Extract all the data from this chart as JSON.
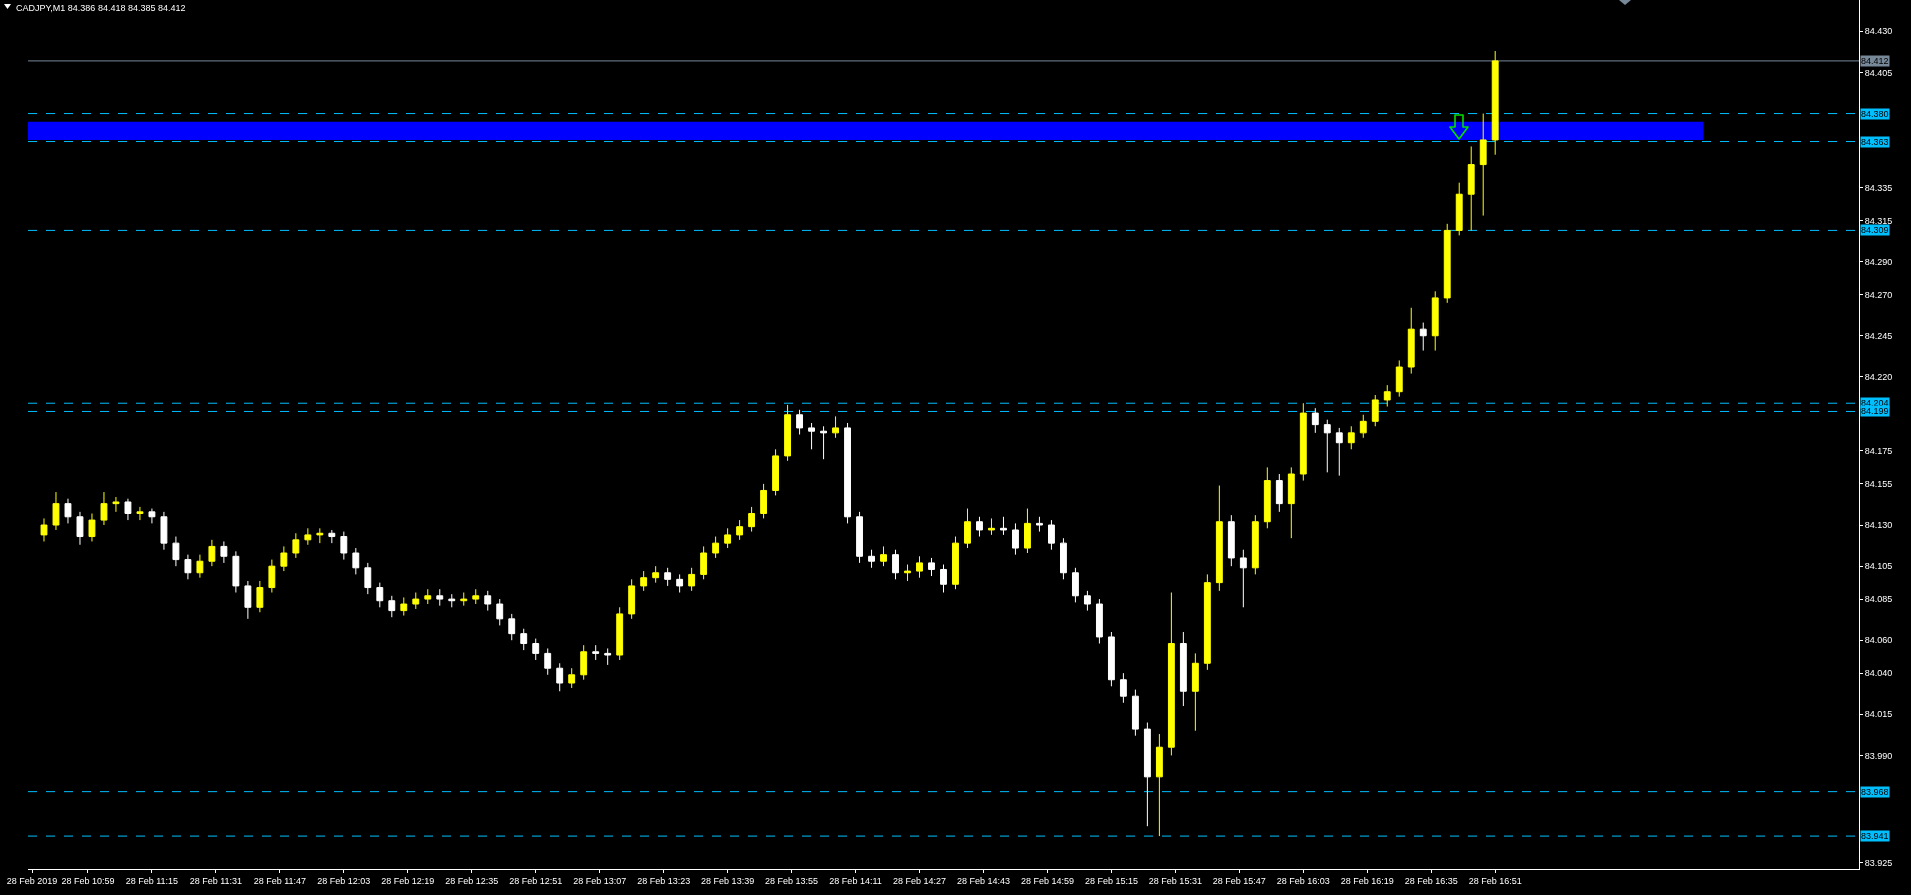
{
  "chart_data": {
    "type": "candlestick",
    "title": "CADJPY,M1 84.386 84.418 84.385 84.412",
    "x": [
      "2019-02-28T10:48",
      "2019-02-28T10:51",
      "2019-02-28T10:54",
      "2019-02-28T10:57",
      "2019-02-28T11:00",
      "2019-02-28T11:03",
      "2019-02-28T11:06",
      "2019-02-28T11:09",
      "2019-02-28T11:12",
      "2019-02-28T11:15",
      "2019-02-28T11:18",
      "2019-02-28T11:21",
      "2019-02-28T11:24",
      "2019-02-28T11:27",
      "2019-02-28T11:30",
      "2019-02-28T11:33",
      "2019-02-28T11:36",
      "2019-02-28T11:39",
      "2019-02-28T11:42",
      "2019-02-28T11:45",
      "2019-02-28T11:48",
      "2019-02-28T11:51",
      "2019-02-28T11:54",
      "2019-02-28T11:57",
      "2019-02-28T12:00",
      "2019-02-28T12:03",
      "2019-02-28T12:06",
      "2019-02-28T12:09",
      "2019-02-28T12:12",
      "2019-02-28T12:15",
      "2019-02-28T12:18",
      "2019-02-28T12:21",
      "2019-02-28T12:24",
      "2019-02-28T12:27",
      "2019-02-28T12:30",
      "2019-02-28T12:33",
      "2019-02-28T12:36",
      "2019-02-28T12:39",
      "2019-02-28T12:42",
      "2019-02-28T12:45",
      "2019-02-28T12:48",
      "2019-02-28T12:51",
      "2019-02-28T12:54",
      "2019-02-28T12:57",
      "2019-02-28T13:00",
      "2019-02-28T13:03",
      "2019-02-28T13:06",
      "2019-02-28T13:09",
      "2019-02-28T13:12",
      "2019-02-28T13:15",
      "2019-02-28T13:18",
      "2019-02-28T13:21",
      "2019-02-28T13:24",
      "2019-02-28T13:27",
      "2019-02-28T13:30",
      "2019-02-28T13:33",
      "2019-02-28T13:36",
      "2019-02-28T13:39",
      "2019-02-28T13:42",
      "2019-02-28T13:45",
      "2019-02-28T13:48",
      "2019-02-28T13:51",
      "2019-02-28T13:54",
      "2019-02-28T13:57",
      "2019-02-28T14:00",
      "2019-02-28T14:03",
      "2019-02-28T14:06",
      "2019-02-28T14:09",
      "2019-02-28T14:12",
      "2019-02-28T14:15",
      "2019-02-28T14:18",
      "2019-02-28T14:21",
      "2019-02-28T14:24",
      "2019-02-28T14:27",
      "2019-02-28T14:30",
      "2019-02-28T14:33",
      "2019-02-28T14:36",
      "2019-02-28T14:39",
      "2019-02-28T14:42",
      "2019-02-28T14:45",
      "2019-02-28T14:48",
      "2019-02-28T14:51",
      "2019-02-28T14:54",
      "2019-02-28T14:57",
      "2019-02-28T15:00",
      "2019-02-28T15:03",
      "2019-02-28T15:06",
      "2019-02-28T15:09",
      "2019-02-28T15:12",
      "2019-02-28T15:15",
      "2019-02-28T15:18",
      "2019-02-28T15:21",
      "2019-02-28T15:24",
      "2019-02-28T15:27",
      "2019-02-28T15:30",
      "2019-02-28T15:33",
      "2019-02-28T15:36",
      "2019-02-28T15:39",
      "2019-02-28T15:42",
      "2019-02-28T15:45",
      "2019-02-28T15:48",
      "2019-02-28T15:51",
      "2019-02-28T15:54",
      "2019-02-28T15:57",
      "2019-02-28T16:00",
      "2019-02-28T16:03",
      "2019-02-28T16:06",
      "2019-02-28T16:09",
      "2019-02-28T16:12",
      "2019-02-28T16:15",
      "2019-02-28T16:18",
      "2019-02-28T16:21",
      "2019-02-28T16:24",
      "2019-02-28T16:27",
      "2019-02-28T16:30",
      "2019-02-28T16:33",
      "2019-02-28T16:36",
      "2019-02-28T16:39",
      "2019-02-28T16:42",
      "2019-02-28T16:45",
      "2019-02-28T16:48",
      "2019-02-28T16:51"
    ],
    "ohlc": [
      [
        84.124,
        84.134,
        84.12,
        84.13
      ],
      [
        84.13,
        84.15,
        84.127,
        84.143
      ],
      [
        84.143,
        84.146,
        84.131,
        84.135
      ],
      [
        84.135,
        84.138,
        84.118,
        84.123
      ],
      [
        84.123,
        84.137,
        84.12,
        84.133
      ],
      [
        84.133,
        84.15,
        84.13,
        84.143
      ],
      [
        84.143,
        84.147,
        84.138,
        84.144
      ],
      [
        84.144,
        84.146,
        84.133,
        84.137
      ],
      [
        84.137,
        84.141,
        84.133,
        84.138
      ],
      [
        84.138,
        84.14,
        84.131,
        84.135
      ],
      [
        84.135,
        84.138,
        84.115,
        84.119
      ],
      [
        84.119,
        84.123,
        84.105,
        84.109
      ],
      [
        84.109,
        84.112,
        84.097,
        84.101
      ],
      [
        84.101,
        84.112,
        84.098,
        84.108
      ],
      [
        84.108,
        84.121,
        84.105,
        84.117
      ],
      [
        84.117,
        84.12,
        84.107,
        84.111
      ],
      [
        84.111,
        84.114,
        84.089,
        84.093
      ],
      [
        84.093,
        84.096,
        84.073,
        84.08
      ],
      [
        84.08,
        84.096,
        84.077,
        84.092
      ],
      [
        84.092,
        84.109,
        84.089,
        84.105
      ],
      [
        84.105,
        84.117,
        84.102,
        84.113
      ],
      [
        84.113,
        84.125,
        84.11,
        84.121
      ],
      [
        84.121,
        84.128,
        84.118,
        84.124
      ],
      [
        84.124,
        84.128,
        84.119,
        84.125
      ],
      [
        84.125,
        84.127,
        84.119,
        84.123
      ],
      [
        84.123,
        84.126,
        84.109,
        84.113
      ],
      [
        84.113,
        84.116,
        84.1,
        84.104
      ],
      [
        84.104,
        84.107,
        84.088,
        84.092
      ],
      [
        84.092,
        84.095,
        84.08,
        84.084
      ],
      [
        84.084,
        84.087,
        84.074,
        84.078
      ],
      [
        84.078,
        84.086,
        84.075,
        84.082
      ],
      [
        84.082,
        84.089,
        84.079,
        84.085
      ],
      [
        84.085,
        84.091,
        84.082,
        84.087
      ],
      [
        84.087,
        84.091,
        84.081,
        84.085
      ],
      [
        84.085,
        84.088,
        84.08,
        84.084
      ],
      [
        84.084,
        84.089,
        84.081,
        84.085
      ],
      [
        84.085,
        84.091,
        84.082,
        84.087
      ],
      [
        84.087,
        84.09,
        84.078,
        84.082
      ],
      [
        84.082,
        84.085,
        84.069,
        84.073
      ],
      [
        84.073,
        84.076,
        84.06,
        84.064
      ],
      [
        84.064,
        84.067,
        84.054,
        84.058
      ],
      [
        84.058,
        84.061,
        84.048,
        84.052
      ],
      [
        84.052,
        84.055,
        84.039,
        84.043
      ],
      [
        84.043,
        84.046,
        84.029,
        84.034
      ],
      [
        84.034,
        84.043,
        84.031,
        84.039
      ],
      [
        84.039,
        84.057,
        84.036,
        84.053
      ],
      [
        84.053,
        84.057,
        84.048,
        84.052
      ],
      [
        84.052,
        84.055,
        84.045,
        84.051
      ],
      [
        84.051,
        84.08,
        84.048,
        84.076
      ],
      [
        84.076,
        84.097,
        84.073,
        84.093
      ],
      [
        84.093,
        84.102,
        84.09,
        84.098
      ],
      [
        84.098,
        84.105,
        84.095,
        84.101
      ],
      [
        84.101,
        84.104,
        84.093,
        84.097
      ],
      [
        84.097,
        84.1,
        84.089,
        84.093
      ],
      [
        84.093,
        84.104,
        84.09,
        84.1
      ],
      [
        84.1,
        84.117,
        84.097,
        84.113
      ],
      [
        84.113,
        84.123,
        84.11,
        84.119
      ],
      [
        84.119,
        84.128,
        84.116,
        84.124
      ],
      [
        84.124,
        84.133,
        84.121,
        84.129
      ],
      [
        84.129,
        84.141,
        84.126,
        84.137
      ],
      [
        84.137,
        84.155,
        84.134,
        84.151
      ],
      [
        84.151,
        84.176,
        84.148,
        84.172
      ],
      [
        84.172,
        84.203,
        84.169,
        84.197
      ],
      [
        84.197,
        84.2,
        84.185,
        84.189
      ],
      [
        84.189,
        84.192,
        84.176,
        84.187
      ],
      [
        84.187,
        84.19,
        84.17,
        84.186
      ],
      [
        84.186,
        84.196,
        84.183,
        84.189
      ],
      [
        84.189,
        84.192,
        84.131,
        84.135
      ],
      [
        84.135,
        84.138,
        84.107,
        84.111
      ],
      [
        84.111,
        84.115,
        84.104,
        84.108
      ],
      [
        84.108,
        84.117,
        84.105,
        84.112
      ],
      [
        84.112,
        84.115,
        84.097,
        84.101
      ],
      [
        84.101,
        84.106,
        84.096,
        84.102
      ],
      [
        84.102,
        84.111,
        84.098,
        84.107
      ],
      [
        84.107,
        84.11,
        84.099,
        84.103
      ],
      [
        84.103,
        84.106,
        84.089,
        84.094
      ],
      [
        84.094,
        84.123,
        84.091,
        84.119
      ],
      [
        84.119,
        84.14,
        84.116,
        84.132
      ],
      [
        84.132,
        84.135,
        84.123,
        84.127
      ],
      [
        84.127,
        84.134,
        84.124,
        84.128
      ],
      [
        84.128,
        84.135,
        84.124,
        84.127
      ],
      [
        84.127,
        84.131,
        84.112,
        84.116
      ],
      [
        84.116,
        84.14,
        84.113,
        84.131
      ],
      [
        84.131,
        84.135,
        84.126,
        84.13
      ],
      [
        84.13,
        84.133,
        84.115,
        84.119
      ],
      [
        84.119,
        84.122,
        84.097,
        84.101
      ],
      [
        84.101,
        84.104,
        84.083,
        84.087
      ],
      [
        84.087,
        84.09,
        84.078,
        84.082
      ],
      [
        84.082,
        84.085,
        84.058,
        84.062
      ],
      [
        84.062,
        84.065,
        84.032,
        84.036
      ],
      [
        84.036,
        84.04,
        84.022,
        84.026
      ],
      [
        84.026,
        84.03,
        84.002,
        84.006
      ],
      [
        84.006,
        84.01,
        83.947,
        83.977
      ],
      [
        83.977,
        84.003,
        83.941,
        83.995
      ],
      [
        83.995,
        84.089,
        83.99,
        84.058
      ],
      [
        84.058,
        84.065,
        84.02,
        84.029
      ],
      [
        84.029,
        84.052,
        84.005,
        84.046
      ],
      [
        84.046,
        84.1,
        84.042,
        84.095
      ],
      [
        84.095,
        84.154,
        84.09,
        84.132
      ],
      [
        84.132,
        84.136,
        84.105,
        84.11
      ],
      [
        84.11,
        84.115,
        84.08,
        84.104
      ],
      [
        84.104,
        84.136,
        84.1,
        84.132
      ],
      [
        84.132,
        84.165,
        84.128,
        84.157
      ],
      [
        84.157,
        84.161,
        84.138,
        84.143
      ],
      [
        84.143,
        84.165,
        84.122,
        84.161
      ],
      [
        84.161,
        84.204,
        84.157,
        84.198
      ],
      [
        84.198,
        84.201,
        84.186,
        84.191
      ],
      [
        84.191,
        84.194,
        84.162,
        84.186
      ],
      [
        84.186,
        84.189,
        84.16,
        84.18
      ],
      [
        84.18,
        84.19,
        84.176,
        84.186
      ],
      [
        84.186,
        84.197,
        84.183,
        84.193
      ],
      [
        84.193,
        84.209,
        84.19,
        84.206
      ],
      [
        84.206,
        84.215,
        84.202,
        84.211
      ],
      [
        84.211,
        84.23,
        84.208,
        84.226
      ],
      [
        84.226,
        84.262,
        84.222,
        84.249
      ],
      [
        84.249,
        84.253,
        84.236,
        84.245
      ],
      [
        84.245,
        84.272,
        84.236,
        84.268
      ],
      [
        84.268,
        84.313,
        84.265,
        84.309
      ],
      [
        84.309,
        84.338,
        84.306,
        84.331
      ],
      [
        84.331,
        84.36,
        84.309,
        84.349
      ],
      [
        84.349,
        84.38,
        84.318,
        84.364
      ],
      [
        84.364,
        84.418,
        84.355,
        84.412
      ]
    ],
    "colors": [
      "#ffff00",
      "#ffff00",
      "#ffffff",
      "#ffffff",
      "#ffff00",
      "#ffff00",
      "#ffff00",
      "#ffffff",
      "#ffff00",
      "#ffffff",
      "#ffffff",
      "#ffffff",
      "#ffffff",
      "#ffff00",
      "#ffff00",
      "#ffffff",
      "#ffffff",
      "#ffffff",
      "#ffff00",
      "#ffff00",
      "#ffff00",
      "#ffff00",
      "#ffff00",
      "#ffff00",
      "#ffffff",
      "#ffffff",
      "#ffffff",
      "#ffffff",
      "#ffffff",
      "#ffffff",
      "#ffff00",
      "#ffff00",
      "#ffff00",
      "#ffffff",
      "#ffffff",
      "#ffff00",
      "#ffff00",
      "#ffffff",
      "#ffffff",
      "#ffffff",
      "#ffffff",
      "#ffffff",
      "#ffffff",
      "#ffffff",
      "#ffff00",
      "#ffff00",
      "#ffffff",
      "#ffffff",
      "#ffff00",
      "#ffff00",
      "#ffff00",
      "#ffff00",
      "#ffffff",
      "#ffffff",
      "#ffff00",
      "#ffff00",
      "#ffff00",
      "#ffff00",
      "#ffff00",
      "#ffff00",
      "#ffff00",
      "#ffff00",
      "#ffff00",
      "#ffffff",
      "#ffffff",
      "#ffffff",
      "#ffff00",
      "#ffffff",
      "#ffffff",
      "#ffffff",
      "#ffff00",
      "#ffffff",
      "#ffff00",
      "#ffff00",
      "#ffffff",
      "#ffffff",
      "#ffff00",
      "#ffff00",
      "#ffffff",
      "#ffff00",
      "#ffffff",
      "#ffffff",
      "#ffff00",
      "#ffffff",
      "#ffffff",
      "#ffffff",
      "#ffffff",
      "#ffffff",
      "#ffffff",
      "#ffffff",
      "#ffffff",
      "#ffffff",
      "#ffffff",
      "#ffff00",
      "#ffff00",
      "#ffffff",
      "#ffff00",
      "#ffff00",
      "#ffff00",
      "#ffffff",
      "#ffffff",
      "#ffff00",
      "#ffff00",
      "#ffffff",
      "#ffff00",
      "#ffff00",
      "#ffffff",
      "#ffffff",
      "#ffffff",
      "#ffff00",
      "#ffff00",
      "#ffff00",
      "#ffff00",
      "#ffff00",
      "#ffff00",
      "#ffffff",
      "#ffff00",
      "#ffff00",
      "#ffff00",
      "#ffff00",
      "#ffff00",
      "#ffff00"
    ],
    "xlim": [
      "2019-02-28T10:44",
      "2019-02-28T18:22"
    ],
    "xticks": [
      {
        "value": "2019-02-28T10:45",
        "label": "28 Feb 2019"
      },
      {
        "value": "2019-02-28T10:59",
        "label": "28 Feb 10:59"
      },
      {
        "value": "2019-02-28T11:15",
        "label": "28 Feb 11:15"
      },
      {
        "value": "2019-02-28T11:31",
        "label": "28 Feb 11:31"
      },
      {
        "value": "2019-02-28T11:47",
        "label": "28 Feb 11:47"
      },
      {
        "value": "2019-02-28T12:03",
        "label": "28 Feb 12:03"
      },
      {
        "value": "2019-02-28T12:19",
        "label": "28 Feb 12:19"
      },
      {
        "value": "2019-02-28T12:35",
        "label": "28 Feb 12:35"
      },
      {
        "value": "2019-02-28T12:51",
        "label": "28 Feb 12:51"
      },
      {
        "value": "2019-02-28T13:07",
        "label": "28 Feb 13:07"
      },
      {
        "value": "2019-02-28T13:23",
        "label": "28 Feb 13:23"
      },
      {
        "value": "2019-02-28T13:39",
        "label": "28 Feb 13:39"
      },
      {
        "value": "2019-02-28T13:55",
        "label": "28 Feb 13:55"
      },
      {
        "value": "2019-02-28T14:11",
        "label": "28 Feb 14:11"
      },
      {
        "value": "2019-02-28T14:27",
        "label": "28 Feb 14:27"
      },
      {
        "value": "2019-02-28T14:43",
        "label": "28 Feb 14:43"
      },
      {
        "value": "2019-02-28T14:59",
        "label": "28 Feb 14:59"
      },
      {
        "value": "2019-02-28T15:15",
        "label": "28 Feb 15:15"
      },
      {
        "value": "2019-02-28T15:31",
        "label": "28 Feb 15:31"
      },
      {
        "value": "2019-02-28T15:47",
        "label": "28 Feb 15:47"
      },
      {
        "value": "2019-02-28T16:03",
        "label": "28 Feb 16:03"
      },
      {
        "value": "2019-02-28T16:19",
        "label": "28 Feb 16:19"
      },
      {
        "value": "2019-02-28T16:35",
        "label": "28 Feb 16:35"
      },
      {
        "value": "2019-02-28T16:51",
        "label": "28 Feb 16:51"
      }
    ],
    "ylim": [
      83.921,
      84.449
    ],
    "yticks": [
      {
        "value": 84.43,
        "label": "84.430"
      },
      84.405,
      84.335,
      84.315,
      {
        "value": 84.29,
        "label": "84.290"
      },
      {
        "value": 84.27,
        "label": "84.270"
      },
      84.245,
      {
        "value": 84.22,
        "label": "84.220"
      },
      84.175,
      84.155,
      {
        "value": 84.13,
        "label": "84.130"
      },
      84.105,
      84.085,
      {
        "value": 84.06,
        "label": "84.060"
      },
      {
        "value": 84.04,
        "label": "84.040"
      },
      84.015,
      {
        "value": 83.99,
        "label": "83.990"
      },
      83.925
    ],
    "ref_lines": [
      {
        "axis": "y",
        "value": 84.412,
        "label": "84.412",
        "color": "#778899",
        "line_style": "solid"
      },
      {
        "axis": "y",
        "value": 84.38,
        "label": "84.380",
        "color": "#00bfff",
        "line_style": "dashed"
      },
      {
        "axis": "y",
        "value": 84.363,
        "label": "84.363",
        "color": "#00bfff",
        "line_style": "dashed"
      },
      {
        "axis": "y",
        "value": 84.309,
        "label": "84.309",
        "color": "#00bfff",
        "line_style": "dashed"
      },
      {
        "axis": "y",
        "value": 84.204,
        "label": "84.204",
        "color": "#00bfff",
        "line_style": "dashed"
      },
      {
        "axis": "y",
        "value": 84.199,
        "label": "84.199",
        "color": "#00bfff",
        "line_style": "dashed"
      },
      {
        "axis": "y",
        "value": 83.968,
        "label": "83.968",
        "color": "#00bfff",
        "line_style": "dashed"
      },
      {
        "axis": "y",
        "value": 83.941,
        "label": "83.941",
        "color": "#00bfff",
        "line_style": "dashed"
      }
    ],
    "bands": [
      {
        "axis": "y",
        "from": 84.364,
        "to": 84.375,
        "color": "#0000ff"
      }
    ]
  }
}
